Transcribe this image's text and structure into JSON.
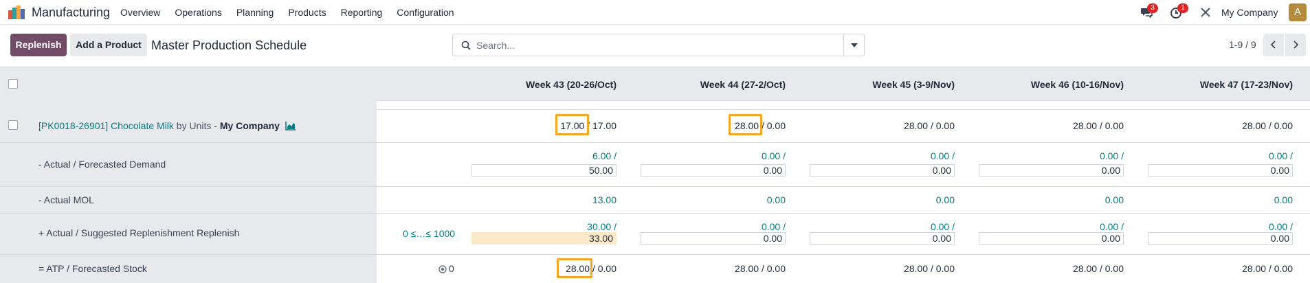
{
  "app": {
    "name": "Manufacturing",
    "menu": [
      "Overview",
      "Operations",
      "Planning",
      "Products",
      "Reporting",
      "Configuration"
    ],
    "messages_badge": "3",
    "activities_badge": "1",
    "company": "My Company",
    "avatar_letter": "A"
  },
  "control": {
    "replenish_label": "Replenish",
    "add_product_label": "Add a Product",
    "title": "Master Production Schedule",
    "search_placeholder": "Search...",
    "pager": "1-9 / 9"
  },
  "colors": {
    "primary": "#714b67",
    "link": "#017e84",
    "highlight_box": "#f5a623",
    "suggested_bg": "#fbe9c9"
  },
  "weeks": [
    "Week 43 (20-26/Oct)",
    "Week 44 (27-2/Oct)",
    "Week 45 (3-9/Nov)",
    "Week 46 (10-16/Nov)",
    "Week 47 (17-23/Nov)"
  ],
  "product": {
    "name": "[PK0018-26901] Chocolate Milk",
    "by": "by",
    "uom": "Units",
    "dash": "-",
    "company": "My Company",
    "forecast": [
      {
        "a": "17.00",
        "b": "/ 17.00"
      },
      {
        "a": "28.00",
        "b": "/ 0.00"
      },
      {
        "a": "28.00",
        "b": "/ 0.00"
      },
      {
        "a": "28.00",
        "b": "/ 0.00"
      },
      {
        "a": "28.00",
        "b": "/ 0.00"
      }
    ]
  },
  "rows": {
    "demand": {
      "label": "- Actual / Forecasted Demand",
      "actual": [
        "6.00 /",
        "0.00 /",
        "0.00 /",
        "0.00 /",
        "0.00 /"
      ],
      "forecast": [
        "50.00",
        "0.00",
        "0.00",
        "0.00",
        "0.00"
      ]
    },
    "mol": {
      "label": "- Actual MOL",
      "values": [
        "13.00",
        "0.00",
        "0.00",
        "0.00",
        "0.00"
      ]
    },
    "replenishment": {
      "label": "+ Actual / Suggested Replenishment",
      "replenish_link": "Replenish",
      "bounds": "0 ≤…≤ 1000",
      "actual": [
        "30.00 /",
        "0.00 /",
        "0.00 /",
        "0.00 /",
        "0.00 /"
      ],
      "suggested": [
        "33.00",
        "0.00",
        "0.00",
        "0.00",
        "0.00"
      ]
    },
    "atp": {
      "label": "= ATP / Forecasted Stock",
      "safety": "0",
      "values": [
        {
          "a": "28.00",
          "b": "/ 0.00"
        },
        {
          "a": "28.00",
          "b": "/ 0.00"
        },
        {
          "a": "28.00",
          "b": "/ 0.00"
        },
        {
          "a": "28.00",
          "b": "/ 0.00"
        },
        {
          "a": "28.00",
          "b": "/ 0.00"
        }
      ]
    }
  }
}
